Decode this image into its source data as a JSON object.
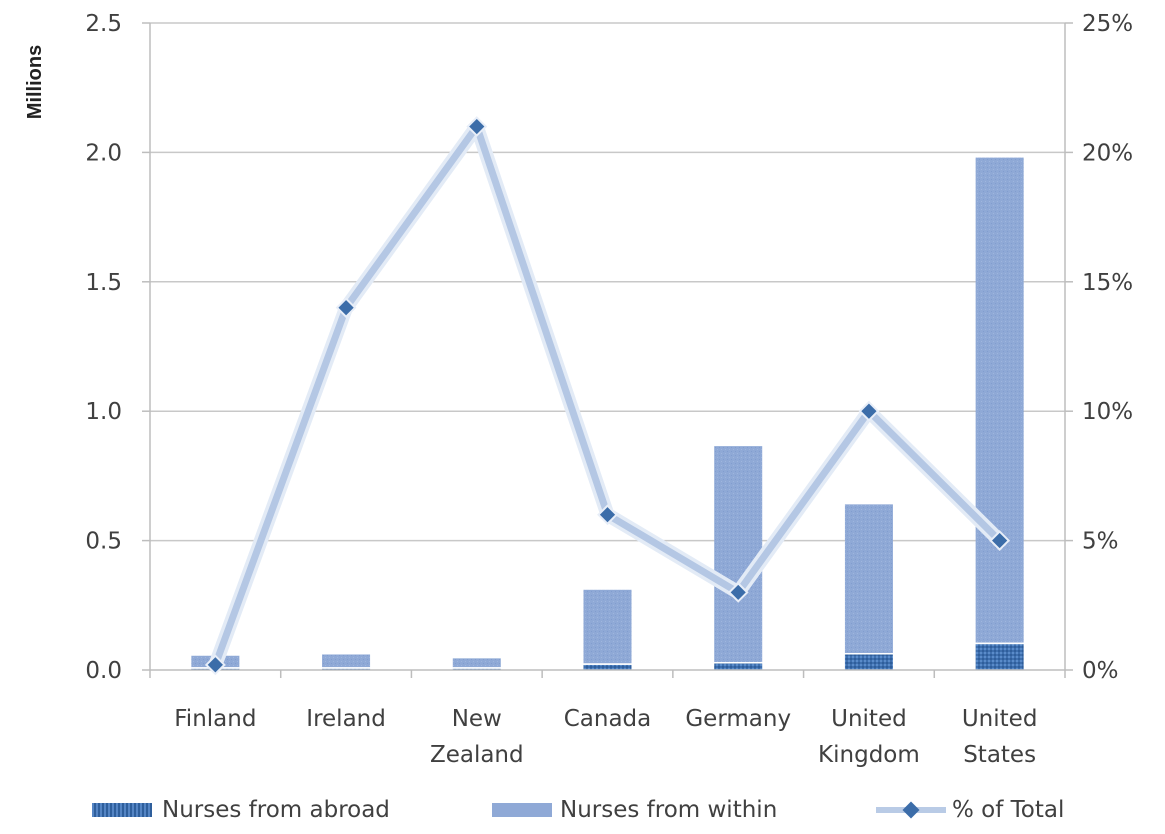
{
  "chart_data": {
    "type": "bar",
    "categories": [
      [
        "Finland"
      ],
      [
        "Ireland"
      ],
      [
        "New",
        "Zealand"
      ],
      [
        "Canada"
      ],
      [
        "Germany"
      ],
      [
        "United",
        "Kingdom"
      ],
      [
        "United",
        "States"
      ]
    ],
    "series": [
      {
        "name": "Nurses from abroad",
        "kind": "stacked-bar",
        "axis": "left",
        "color": "#3e6fae",
        "values": [
          0.005,
          0.005,
          0.005,
          0.02,
          0.025,
          0.06,
          0.1
        ]
      },
      {
        "name": "Nurses from within",
        "kind": "stacked-bar",
        "axis": "left",
        "color": "#8fa9d6",
        "values": [
          0.05,
          0.055,
          0.04,
          0.29,
          0.84,
          0.58,
          1.88
        ]
      },
      {
        "name": "% of Total",
        "kind": "line",
        "axis": "right",
        "color": "#3c6da9",
        "values": [
          0.2,
          14,
          21,
          6,
          3,
          10,
          5
        ]
      }
    ],
    "y_left": {
      "label": "Millions",
      "range": [
        0,
        2.5
      ],
      "ticks": [
        "0.0",
        "0.5",
        "1.0",
        "1.5",
        "2.0",
        "2.5"
      ],
      "tick_values": [
        0,
        0.5,
        1.0,
        1.5,
        2.0,
        2.5
      ]
    },
    "y_right": {
      "range": [
        0,
        25
      ],
      "ticks": [
        "0%",
        "5%",
        "10%",
        "15%",
        "20%",
        "25%"
      ],
      "tick_values": [
        0,
        5,
        10,
        15,
        20,
        25
      ]
    },
    "grid": true,
    "legend_position": "bottom"
  },
  "legend": {
    "abroad": "Nurses from abroad",
    "within": "Nurses from within",
    "pct": "% of Total"
  }
}
